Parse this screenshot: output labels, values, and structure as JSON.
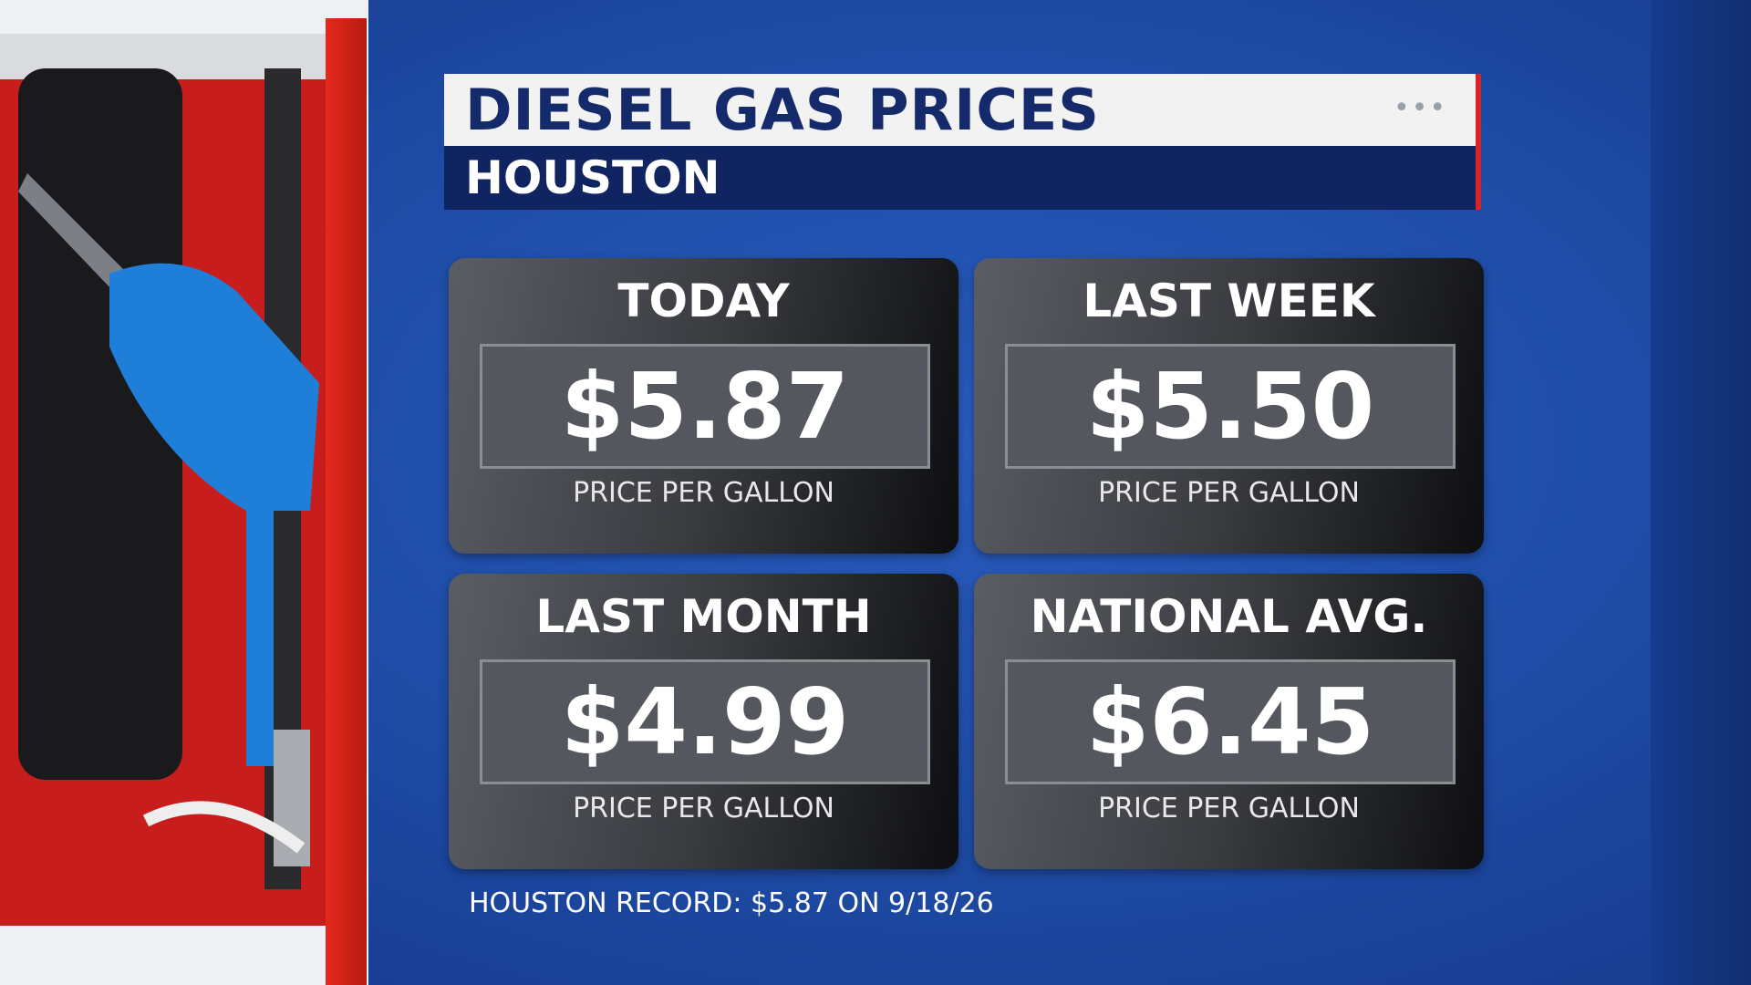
{
  "header": {
    "title": "DIESEL GAS PRICES",
    "subtitle": "HOUSTON"
  },
  "cards": [
    {
      "label": "TODAY",
      "price": "$5.87",
      "caption": "PRICE PER GALLON"
    },
    {
      "label": "LAST WEEK",
      "price": "$5.50",
      "caption": "PRICE PER GALLON"
    },
    {
      "label": "LAST MONTH",
      "price": "$4.99",
      "caption": "PRICE PER GALLON"
    },
    {
      "label": "NATIONAL AVG.",
      "price": "$6.45",
      "caption": "PRICE PER GALLON"
    }
  ],
  "footer": "HOUSTON RECORD: $5.87 ON 9/18/26"
}
